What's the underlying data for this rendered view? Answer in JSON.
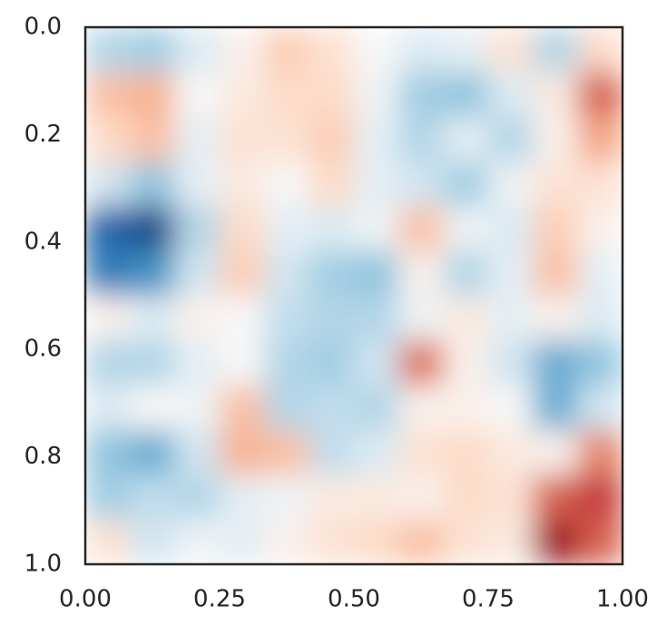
{
  "chart_data": {
    "type": "heatmap",
    "xlim": [
      0,
      1
    ],
    "ylim": [
      0,
      1
    ],
    "y_inverted": true,
    "xticks": [
      {
        "value": 0,
        "label": "0.00"
      },
      0.25,
      {
        "value": 0.5,
        "label": "0.50"
      },
      0.75,
      {
        "value": 1,
        "label": "1.00"
      }
    ],
    "yticks": [
      {
        "value": 0,
        "label": "0.0"
      },
      0.2,
      0.4,
      0.6,
      0.8,
      {
        "value": 1,
        "label": "1.0"
      }
    ],
    "clim": [
      -1,
      1
    ],
    "colormap": [
      "#053061",
      "#2166ac",
      "#4393c3",
      "#92c5de",
      "#d1e5f0",
      "#f7f7f7",
      "#fddbc7",
      "#f4a582",
      "#d6604d",
      "#b2182b",
      "#67001f"
    ],
    "z": [
      [
        -0.3,
        -0.35,
        -0.15,
        0.05,
        0.25,
        0.15,
        0,
        -0.15,
        -0.1,
        0.15,
        -0.3,
        0.2
      ],
      [
        0.3,
        0.35,
        0,
        0.1,
        0.2,
        0.2,
        -0.05,
        -0.35,
        -0.4,
        -0.15,
        0.1,
        0.6
      ],
      [
        0.2,
        0.3,
        -0.1,
        0.15,
        0.15,
        0.25,
        -0.1,
        -0.3,
        -0.1,
        -0.3,
        0.05,
        0.4
      ],
      [
        -0.2,
        -0.4,
        -0.1,
        0.1,
        0,
        0.2,
        -0.1,
        -0.2,
        -0.35,
        -0.05,
        0.15,
        0.15
      ],
      [
        -0.8,
        -0.9,
        -0.3,
        0.2,
        -0.1,
        -0.15,
        -0.05,
        0.3,
        -0.05,
        -0.15,
        0.25,
        0.05
      ],
      [
        -0.7,
        -0.6,
        -0.2,
        0.25,
        -0.2,
        -0.35,
        -0.4,
        0.05,
        -0.3,
        -0.1,
        0.3,
        -0.1
      ],
      [
        0.05,
        -0.15,
        0.05,
        0,
        -0.25,
        -0.3,
        -0.3,
        -0.05,
        0.1,
        -0.1,
        0.05,
        -0.15
      ],
      [
        -0.3,
        -0.3,
        -0.1,
        0,
        -0.3,
        -0.35,
        -0.2,
        0.55,
        0.05,
        -0.2,
        -0.5,
        -0.4
      ],
      [
        -0.15,
        0,
        -0.05,
        0.3,
        -0.3,
        -0.25,
        -0.3,
        0.05,
        0.05,
        0,
        -0.5,
        -0.2
      ],
      [
        -0.4,
        -0.5,
        -0.2,
        0.35,
        0.3,
        -0.25,
        -0.15,
        0.15,
        0.2,
        0.1,
        0.05,
        0.5
      ],
      [
        -0.35,
        -0.25,
        -0.3,
        -0.1,
        -0.05,
        0.1,
        0.1,
        0.05,
        0.2,
        0.15,
        0.6,
        0.7
      ],
      [
        0.15,
        -0.2,
        -0.05,
        -0.1,
        0.05,
        0.15,
        0.2,
        0.3,
        0.15,
        0.1,
        0.85,
        0.6
      ]
    ]
  }
}
